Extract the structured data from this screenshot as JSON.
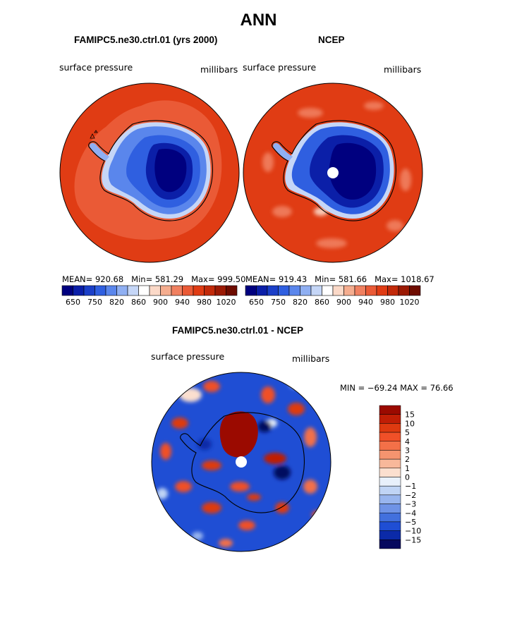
{
  "page": {
    "title": "ANN"
  },
  "chart_data": [
    {
      "type": "heatmap",
      "title": "FAMIPC5.ne30.ctrl.01 (yrs 2000)",
      "left_label": "surface pressure",
      "right_label": "millibars",
      "stats": {
        "mean_label": "MEAN= 920.68",
        "min_label": "Min= 581.29",
        "max_label": "Max= 999.50"
      },
      "projection": "south-polar-stereographic",
      "levels": [
        650,
        700,
        750,
        800,
        820,
        840,
        860,
        880,
        900,
        920,
        940,
        960,
        980,
        1000,
        1020
      ],
      "colorbar_tick_labels": [
        "650",
        "750",
        "820",
        "860",
        "900",
        "940",
        "980",
        "1020"
      ]
    },
    {
      "type": "heatmap",
      "title": "NCEP",
      "left_label": "surface pressure",
      "right_label": "millibars",
      "stats": {
        "mean_label": "MEAN= 919.43",
        "min_label": "Min= 581.66",
        "max_label": "Max= 1018.67"
      },
      "projection": "south-polar-stereographic",
      "levels": [
        650,
        700,
        750,
        800,
        820,
        840,
        860,
        880,
        900,
        920,
        940,
        960,
        980,
        1000,
        1020
      ],
      "colorbar_tick_labels": [
        "650",
        "750",
        "820",
        "860",
        "900",
        "940",
        "980",
        "1020"
      ]
    },
    {
      "type": "heatmap",
      "title": "FAMIPC5.ne30.ctrl.01 - NCEP",
      "left_label": "surface pressure",
      "right_label": "millibars",
      "stats": {
        "minmax_label": "MIN = −69.24  MAX =   76.66"
      },
      "projection": "south-polar-stereographic",
      "levels": [
        -15,
        -10,
        -5,
        -4,
        -3,
        -2,
        -1,
        0,
        1,
        2,
        3,
        4,
        5,
        10,
        15
      ],
      "colorbar_tick_labels": [
        "15",
        "10",
        "5",
        "4",
        "3",
        "2",
        "1",
        "0",
        "−1",
        "−2",
        "−3",
        "−4",
        "−5",
        "−10",
        "−15"
      ]
    }
  ],
  "colors": {
    "abs_scale": [
      "#00007f",
      "#0b1fa8",
      "#1b3fc8",
      "#2f5fe0",
      "#5a86ec",
      "#8faff2",
      "#c5d6f7",
      "#ffffff",
      "#fbd9c8",
      "#f5ad8f",
      "#f08060",
      "#ea5a36",
      "#e03c14",
      "#c22a0a",
      "#9b1a04",
      "#6e0c00"
    ],
    "diff_scale": [
      "#9b0a00",
      "#c01e05",
      "#de3a10",
      "#f05028",
      "#f37048",
      "#f5946f",
      "#f8b89a",
      "#fbdfcf",
      "#e8f0fb",
      "#c0d4f5",
      "#98b5ee",
      "#6f93e6",
      "#4270dd",
      "#1f4ed4",
      "#0b2aa8",
      "#05085e"
    ],
    "ocean_fill": "#e03c14",
    "coast": "#000000"
  }
}
